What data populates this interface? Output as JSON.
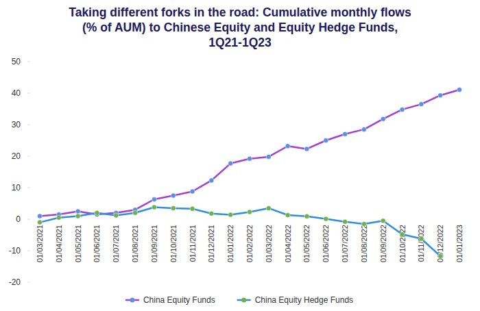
{
  "chart_data": {
    "type": "line",
    "title": "Taking different forks in the road: Cumulative monthly flows (% of AUM) to Chinese Equity and Equity Hedge Funds, 1Q21-1Q23",
    "categories": [
      "01/03/2021",
      "01/04/2021",
      "01/05/2021",
      "01/06/2021",
      "01/07/2021",
      "01/08/2021",
      "01/09/2021",
      "01/10/2021",
      "01/11/2021",
      "01/12/2021",
      "01/01/2022",
      "01/02/2022",
      "01/03/2022",
      "01/04/2022",
      "01/05/2022",
      "01/06/2022",
      "01/07/2022",
      "01/08/2022",
      "01/09/2022",
      "01/10/2022",
      "01/11/2022",
      "01/12/2022",
      "01/01/2023"
    ],
    "series": [
      {
        "name": "China Equity Funds",
        "color": "#a63fd0",
        "marker": "circle",
        "values": [
          1.0,
          1.5,
          2.5,
          1.5,
          2.0,
          3.0,
          6.3,
          7.5,
          8.8,
          12.3,
          17.7,
          19.2,
          19.8,
          23.2,
          22.3,
          25.0,
          27.0,
          28.5,
          31.8,
          34.8,
          36.5,
          39.3,
          41.1
        ]
      },
      {
        "name": "China Equity Hedge Funds",
        "color": "#2e8ee0",
        "marker": "circle",
        "values": [
          -1.0,
          0.5,
          1.0,
          2.0,
          1.2,
          2.0,
          3.8,
          3.5,
          3.3,
          1.8,
          1.4,
          2.3,
          3.5,
          1.3,
          0.9,
          0.1,
          -0.8,
          -1.5,
          -0.5,
          -4.8,
          -6.2,
          -11.7,
          null
        ]
      }
    ],
    "ylim": [
      -20,
      50
    ],
    "yticks": [
      -20,
      -10,
      0,
      10,
      20,
      30,
      40,
      50
    ],
    "grid": false,
    "legend": "bottom"
  }
}
